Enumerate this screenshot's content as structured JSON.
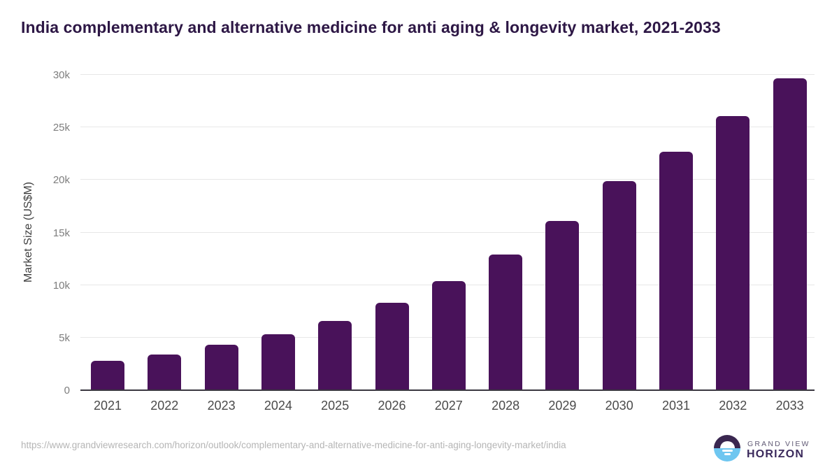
{
  "header": {
    "title": "India complementary and alternative medicine for anti aging & longevity market, 2021-2033"
  },
  "chart_data": {
    "type": "bar",
    "title": "India complementary and alternative medicine for anti aging & longevity market, 2021-2033",
    "categories": [
      "2021",
      "2022",
      "2023",
      "2024",
      "2025",
      "2026",
      "2027",
      "2028",
      "2029",
      "2030",
      "2031",
      "2032",
      "2033"
    ],
    "values": [
      2800,
      3400,
      4300,
      5300,
      6600,
      8300,
      10350,
      12900,
      16100,
      19900,
      22700,
      26100,
      29700
    ],
    "unit": "US$M",
    "xlabel": "",
    "ylabel": "Market Size (US$M)",
    "ylim": [
      0,
      30000
    ],
    "yticks": [
      {
        "value": 0,
        "label": "0"
      },
      {
        "value": 5000,
        "label": "5k"
      },
      {
        "value": 10000,
        "label": "10k"
      },
      {
        "value": 15000,
        "label": "15k"
      },
      {
        "value": 20000,
        "label": "20k"
      },
      {
        "value": 25000,
        "label": "25k"
      },
      {
        "value": 30000,
        "label": "30k"
      }
    ],
    "grid": true,
    "legend": "none",
    "bar_color": "#49125a"
  },
  "footer": {
    "source_url": "https://www.grandviewresearch.com/horizon/outlook/complementary-and-alternative-medicine-for-anti-aging-longevity-market/india",
    "logo": {
      "line1": "GRAND VIEW",
      "line2": "HORIZON"
    }
  },
  "colors": {
    "title": "#2d1745",
    "bar": "#49125a",
    "axis_line": "#3a3740",
    "gridline": "#e7e7e7",
    "tick_label": "#7e7e7e",
    "year_label": "#4a4a4a",
    "footer_url": "#b5b5b5",
    "logo_dark_half": "#3a2750",
    "logo_blue_half": "#6ec6f0",
    "logo_text_top": "#615a75",
    "logo_text_bottom": "#3b2a5c"
  }
}
